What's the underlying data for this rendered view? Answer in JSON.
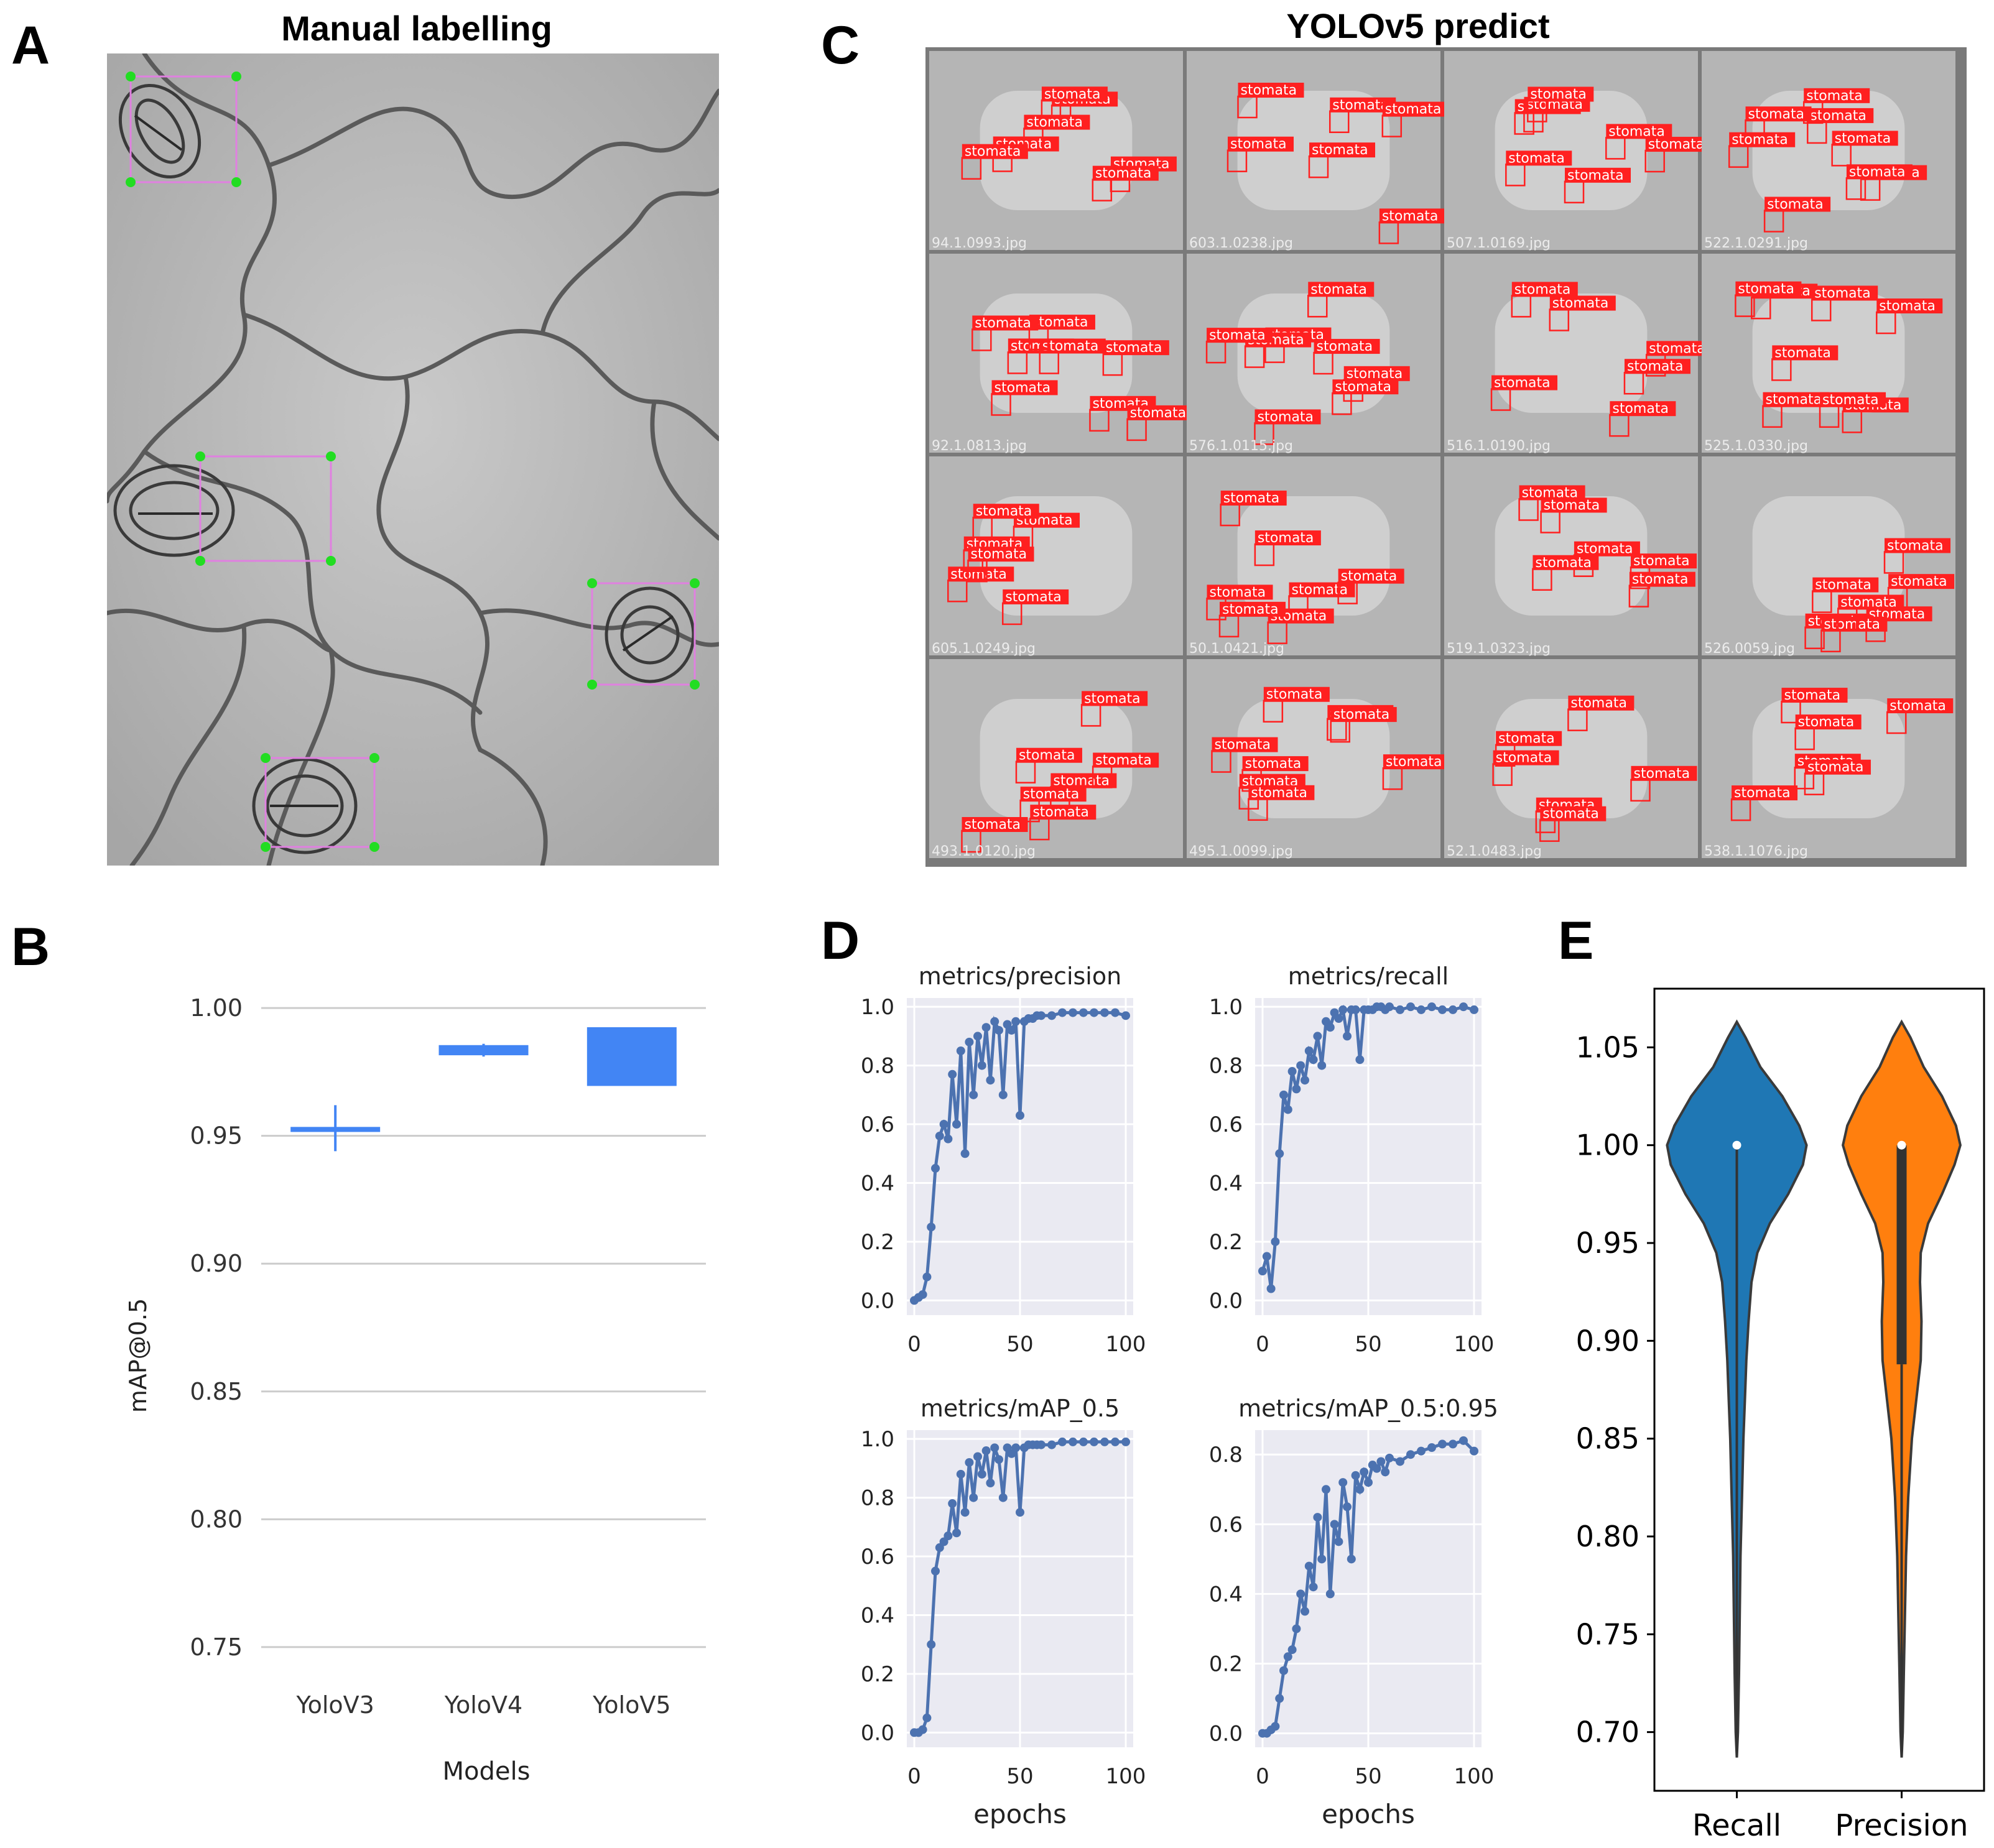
{
  "panels": {
    "A": {
      "letter": "A",
      "title": "Manual labelling"
    },
    "B": {
      "letter": "B"
    },
    "C": {
      "letter": "C",
      "title": "YOLOv5 predict"
    },
    "D": {
      "letter": "D"
    },
    "E": {
      "letter": "E"
    }
  },
  "mosaic": {
    "box_label": "stomata",
    "filenames": [
      [
        "94.1.0993.jpg",
        "603.1.0238.jpg",
        "507.1.0169.jpg",
        "522.1.0291.jpg"
      ],
      [
        "92.1.0813.jpg",
        "576.1.0115.jpg",
        "516.1.0190.jpg",
        "525.1.0330.jpg"
      ],
      [
        "605.1.0249.jpg",
        "50.1.0421.jpg",
        "519.1.0323.jpg",
        "526.0059.jpg"
      ],
      [
        "493.1.0120.jpg",
        "495.1.0099.jpg",
        "52.1.0483.jpg",
        "538.1.1076.jpg"
      ]
    ]
  },
  "colors": {
    "box_red": "#ff2020",
    "blue_B": "#4285f4",
    "line_D": "#4c72b0",
    "violin_recall": "#1f77b4",
    "violin_precision": "#ff7f0e",
    "label_green": "#22dd22",
    "label_pink": "#e080e0"
  },
  "chart_data": [
    {
      "type": "box",
      "ylabel": "mAP@0.5",
      "xlabel": "Models",
      "categories": [
        "YoloV3",
        "YoloV4",
        "YoloV5"
      ],
      "ylim": [
        0.74,
        1.01
      ],
      "yticks": [
        "0.75",
        "0.80",
        "0.85",
        "0.90",
        "0.95",
        "1.00"
      ],
      "boxes": [
        {
          "q1": 0.952,
          "q3": 0.953,
          "whisker_low": 0.944,
          "whisker_high": 0.962
        },
        {
          "q1": 0.982,
          "q3": 0.985,
          "whisker_low": 0.981,
          "whisker_high": 0.986
        },
        {
          "q1": 0.97,
          "q3": 0.992,
          "whisker_low": 0.97,
          "whisker_high": 0.992
        }
      ]
    },
    {
      "type": "line",
      "title": "metrics/precision",
      "xlabel": "",
      "xticks": [
        "0",
        "50",
        "100"
      ],
      "yticks": [
        "0.0",
        "0.2",
        "0.4",
        "0.6",
        "0.8",
        "1.0"
      ],
      "xlim": [
        0,
        100
      ],
      "ylim": [
        -0.05,
        1.03
      ],
      "x": [
        0,
        2,
        4,
        6,
        8,
        10,
        12,
        14,
        16,
        18,
        20,
        22,
        24,
        26,
        28,
        30,
        32,
        34,
        36,
        38,
        40,
        42,
        44,
        46,
        48,
        50,
        52,
        54,
        56,
        58,
        60,
        65,
        70,
        75,
        80,
        85,
        90,
        95,
        100
      ],
      "y": [
        0.0,
        0.01,
        0.02,
        0.08,
        0.25,
        0.45,
        0.56,
        0.6,
        0.55,
        0.77,
        0.6,
        0.85,
        0.5,
        0.88,
        0.7,
        0.9,
        0.8,
        0.93,
        0.75,
        0.95,
        0.92,
        0.7,
        0.94,
        0.92,
        0.95,
        0.63,
        0.95,
        0.96,
        0.96,
        0.97,
        0.97,
        0.97,
        0.98,
        0.98,
        0.98,
        0.98,
        0.98,
        0.98,
        0.97
      ]
    },
    {
      "type": "line",
      "title": "metrics/recall",
      "xlabel": "",
      "xticks": [
        "0",
        "50",
        "100"
      ],
      "yticks": [
        "0.0",
        "0.2",
        "0.4",
        "0.6",
        "0.8",
        "1.0"
      ],
      "xlim": [
        0,
        100
      ],
      "ylim": [
        -0.05,
        1.03
      ],
      "x": [
        0,
        2,
        4,
        6,
        8,
        10,
        12,
        14,
        16,
        18,
        20,
        22,
        24,
        26,
        28,
        30,
        32,
        34,
        36,
        38,
        40,
        42,
        44,
        46,
        48,
        50,
        52,
        54,
        56,
        58,
        60,
        65,
        70,
        75,
        80,
        85,
        90,
        95,
        100
      ],
      "y": [
        0.1,
        0.15,
        0.04,
        0.2,
        0.5,
        0.7,
        0.65,
        0.78,
        0.72,
        0.8,
        0.75,
        0.85,
        0.82,
        0.9,
        0.8,
        0.95,
        0.93,
        0.98,
        0.96,
        0.99,
        0.9,
        0.99,
        0.99,
        0.82,
        0.99,
        0.99,
        0.99,
        1.0,
        1.0,
        0.99,
        1.0,
        0.99,
        1.0,
        0.99,
        1.0,
        0.99,
        0.99,
        1.0,
        0.99
      ]
    },
    {
      "type": "line",
      "title": "metrics/mAP_0.5",
      "xlabel": "epochs",
      "xticks": [
        "0",
        "50",
        "100"
      ],
      "yticks": [
        "0.0",
        "0.2",
        "0.4",
        "0.6",
        "0.8",
        "1.0"
      ],
      "xlim": [
        0,
        100
      ],
      "ylim": [
        -0.05,
        1.03
      ],
      "x": [
        0,
        2,
        4,
        6,
        8,
        10,
        12,
        14,
        16,
        18,
        20,
        22,
        24,
        26,
        28,
        30,
        32,
        34,
        36,
        38,
        40,
        42,
        44,
        46,
        48,
        50,
        52,
        54,
        56,
        58,
        60,
        65,
        70,
        75,
        80,
        85,
        90,
        95,
        100
      ],
      "y": [
        0.0,
        0.0,
        0.01,
        0.05,
        0.3,
        0.55,
        0.63,
        0.65,
        0.67,
        0.78,
        0.68,
        0.88,
        0.75,
        0.92,
        0.8,
        0.94,
        0.88,
        0.96,
        0.85,
        0.97,
        0.93,
        0.8,
        0.97,
        0.95,
        0.97,
        0.75,
        0.97,
        0.98,
        0.98,
        0.98,
        0.98,
        0.98,
        0.99,
        0.99,
        0.99,
        0.99,
        0.99,
        0.99,
        0.99
      ]
    },
    {
      "type": "line",
      "title": "metrics/mAP_0.5:0.95",
      "xlabel": "epochs",
      "xticks": [
        "0",
        "50",
        "100"
      ],
      "yticks": [
        "0.0",
        "0.2",
        "0.4",
        "0.6",
        "0.8"
      ],
      "xlim": [
        0,
        100
      ],
      "ylim": [
        -0.04,
        0.87
      ],
      "x": [
        0,
        2,
        4,
        6,
        8,
        10,
        12,
        14,
        16,
        18,
        20,
        22,
        24,
        26,
        28,
        30,
        32,
        34,
        36,
        38,
        40,
        42,
        44,
        46,
        48,
        50,
        52,
        54,
        56,
        58,
        60,
        65,
        70,
        75,
        80,
        85,
        90,
        95,
        100
      ],
      "y": [
        0.0,
        0.0,
        0.01,
        0.02,
        0.1,
        0.18,
        0.22,
        0.24,
        0.3,
        0.4,
        0.35,
        0.48,
        0.42,
        0.62,
        0.5,
        0.7,
        0.4,
        0.6,
        0.55,
        0.72,
        0.65,
        0.5,
        0.74,
        0.7,
        0.75,
        0.72,
        0.77,
        0.76,
        0.78,
        0.75,
        0.79,
        0.78,
        0.8,
        0.81,
        0.82,
        0.83,
        0.83,
        0.84,
        0.81
      ]
    },
    {
      "type": "violin",
      "categories": [
        "Recall",
        "Precision"
      ],
      "yticks": [
        "0.70",
        "0.75",
        "0.80",
        "0.85",
        "0.90",
        "0.95",
        "1.00",
        "1.05"
      ],
      "ylim": [
        0.67,
        1.08
      ],
      "series": [
        {
          "name": "Recall",
          "min": 0.687,
          "max": 1.063,
          "median": 1.0,
          "q1": 1.0,
          "q3": 1.0
        },
        {
          "name": "Precision",
          "min": 0.687,
          "max": 1.063,
          "median": 1.0,
          "q1": 0.888,
          "q3": 1.0
        }
      ]
    }
  ]
}
